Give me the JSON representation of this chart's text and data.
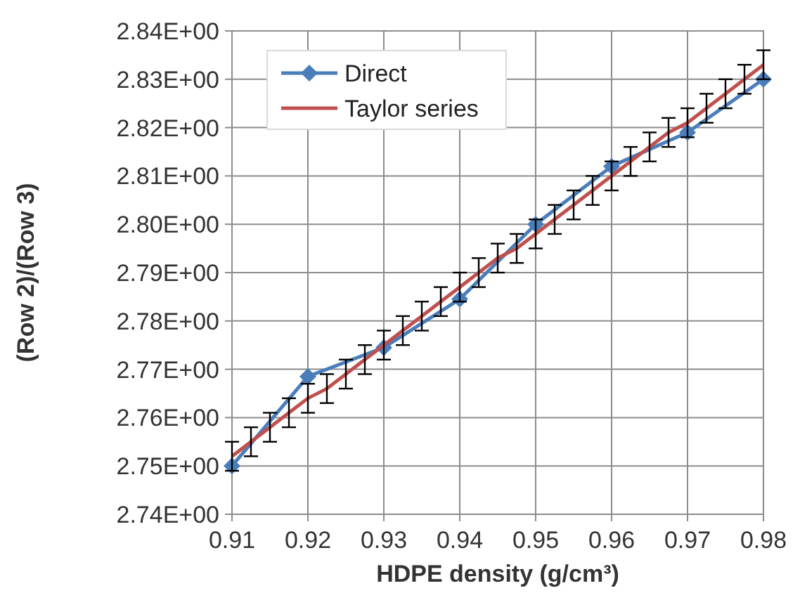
{
  "chart_data": {
    "type": "line",
    "xlabel": "HDPE density (g/cm³)",
    "ylabel": "(Row 2)/(Row 3)",
    "xlim": [
      0.91,
      0.98
    ],
    "xticks": [
      0.91,
      0.92,
      0.93,
      0.94,
      0.95,
      0.96,
      0.97,
      0.98
    ],
    "ylim": [
      2.74,
      2.84
    ],
    "yticks": [
      {
        "value": 2.74,
        "label": "2.74E+00"
      },
      {
        "value": 2.75,
        "label": "2.75E+00"
      },
      {
        "value": 2.76,
        "label": "2.76E+00"
      },
      {
        "value": 2.77,
        "label": "2.77E+00"
      },
      {
        "value": 2.78,
        "label": "2.78E+00"
      },
      {
        "value": 2.79,
        "label": "2.79E+00"
      },
      {
        "value": 2.8,
        "label": "2.80E+00"
      },
      {
        "value": 2.81,
        "label": "2.81E+00"
      },
      {
        "value": 2.82,
        "label": "2.82E+00"
      },
      {
        "value": 2.83,
        "label": "2.83E+00"
      },
      {
        "value": 2.84,
        "label": "2.84E+00"
      }
    ],
    "grid": true,
    "legend": "top left",
    "line_style": "solid",
    "series": [
      {
        "name": "Direct",
        "color": "#4a7ebb",
        "marker": "diamond",
        "x": [
          0.91,
          0.92,
          0.93,
          0.94,
          0.95,
          0.96,
          0.97,
          0.98
        ],
        "values": [
          2.75,
          2.7685,
          2.7745,
          2.7845,
          2.8,
          2.812,
          2.819,
          2.83
        ]
      },
      {
        "name": "Taylor series",
        "color": "#c0504d",
        "marker": "none",
        "x": [
          0.91,
          0.9125,
          0.915,
          0.9175,
          0.92,
          0.9225,
          0.925,
          0.9275,
          0.93,
          0.9325,
          0.935,
          0.9375,
          0.94,
          0.9425,
          0.945,
          0.9475,
          0.95,
          0.9525,
          0.955,
          0.9575,
          0.96,
          0.9625,
          0.965,
          0.9675,
          0.97,
          0.9725,
          0.975,
          0.9775,
          0.98
        ],
        "values": [
          2.752,
          2.755,
          2.758,
          2.761,
          2.764,
          2.766,
          2.769,
          2.772,
          2.775,
          2.778,
          2.781,
          2.784,
          2.787,
          2.79,
          2.793,
          2.795,
          2.798,
          2.801,
          2.804,
          2.807,
          2.81,
          2.813,
          2.816,
          2.819,
          2.821,
          2.824,
          2.827,
          2.83,
          2.833
        ],
        "errors": [
          0.003,
          0.003,
          0.003,
          0.003,
          0.003,
          0.003,
          0.003,
          0.003,
          0.003,
          0.003,
          0.003,
          0.003,
          0.003,
          0.003,
          0.003,
          0.003,
          0.003,
          0.003,
          0.003,
          0.003,
          0.003,
          0.003,
          0.003,
          0.003,
          0.003,
          0.003,
          0.003,
          0.003,
          0.003
        ]
      }
    ]
  }
}
